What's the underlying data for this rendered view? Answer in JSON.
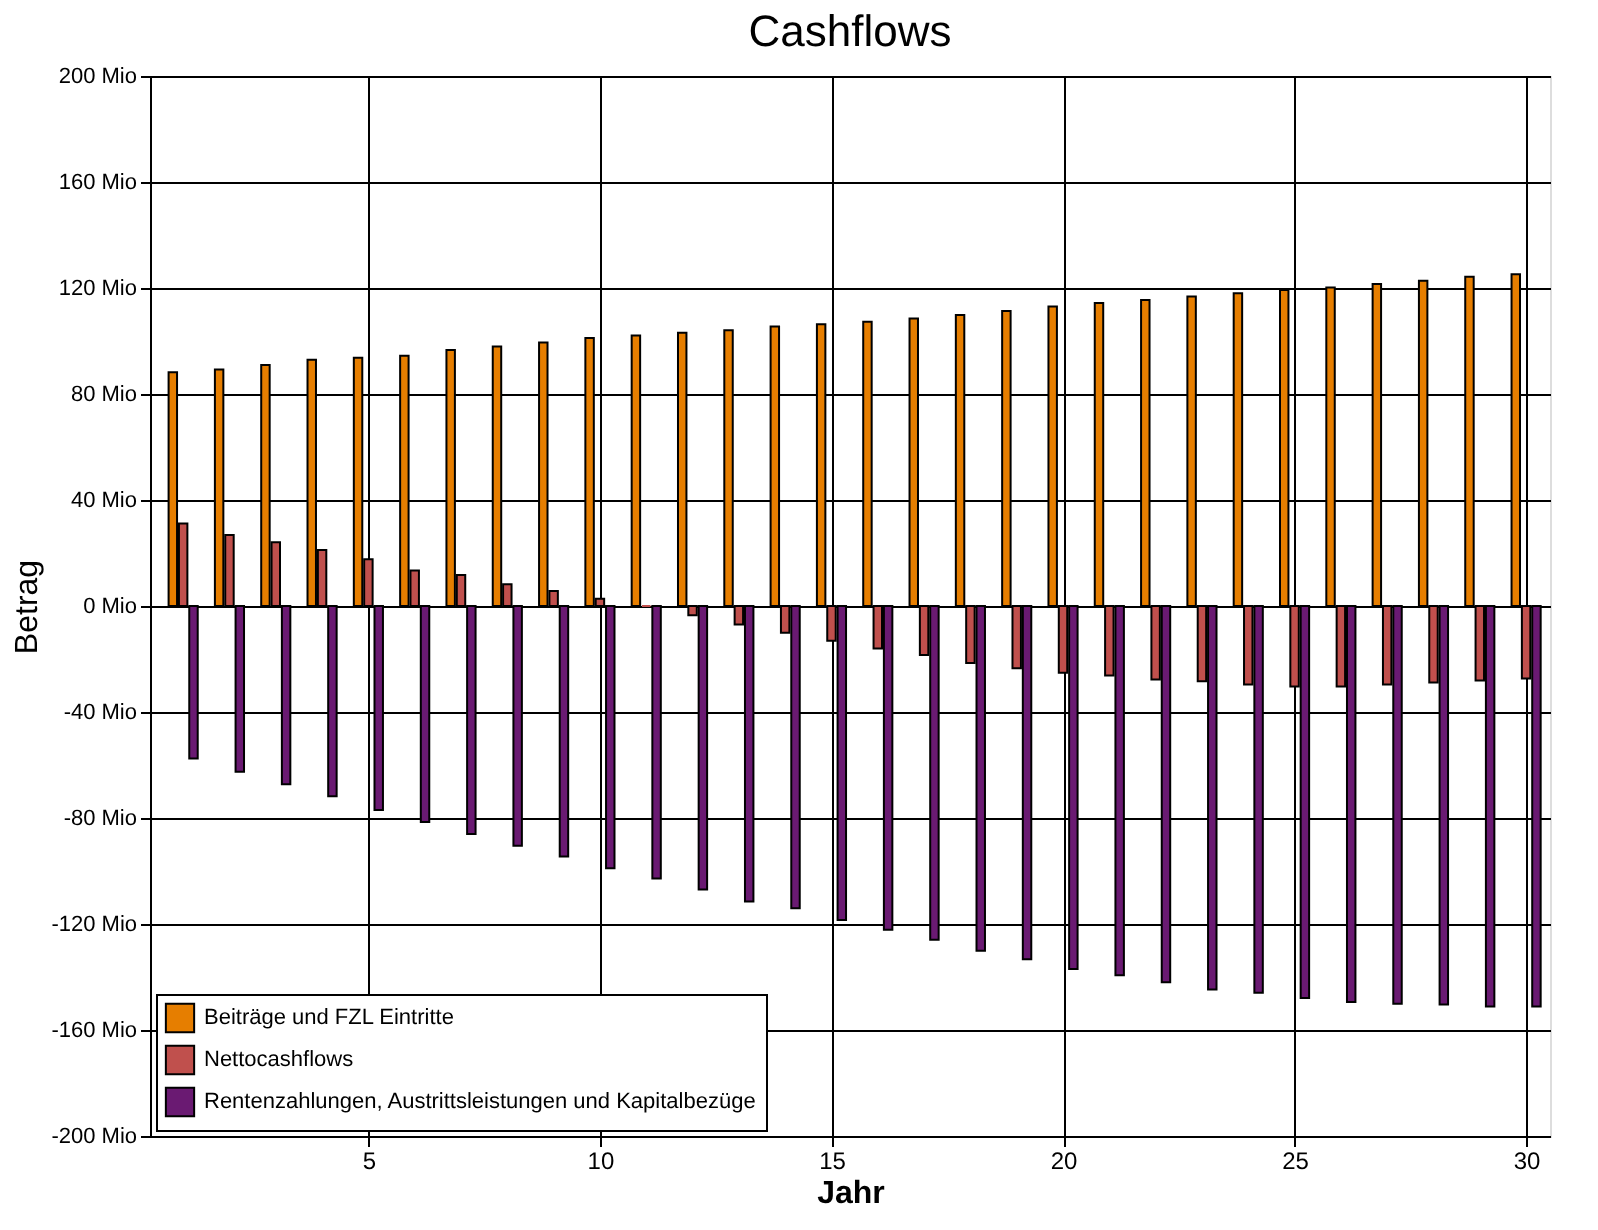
{
  "chart_data": {
    "type": "bar",
    "title": "Cashflows",
    "xlabel": "Jahr",
    "ylabel": "Betrag",
    "x": [
      1,
      2,
      3,
      4,
      5,
      6,
      7,
      8,
      9,
      10,
      11,
      12,
      13,
      14,
      15,
      16,
      17,
      18,
      19,
      20,
      21,
      22,
      23,
      24,
      25,
      26,
      27,
      28,
      29,
      30
    ],
    "xlim": [
      0.5,
      30.3
    ],
    "xticks": [
      5,
      10,
      15,
      20,
      25,
      30
    ],
    "ylim": [
      -200,
      200
    ],
    "yticks": [
      {
        "value": -200,
        "label": "-200 Mio"
      },
      {
        "value": -160,
        "label": "-160 Mio"
      },
      {
        "value": -120,
        "label": "-120 Mio"
      },
      {
        "value": -80,
        "label": "-80 Mio"
      },
      {
        "value": -40,
        "label": "-40 Mio"
      },
      {
        "value": 0,
        "label": "0 Mio"
      },
      {
        "value": 40,
        "label": "40 Mio"
      },
      {
        "value": 80,
        "label": "80 Mio"
      },
      {
        "value": 120,
        "label": "120 Mio"
      },
      {
        "value": 160,
        "label": "160 Mio"
      },
      {
        "value": 200,
        "label": "200 Mio"
      }
    ],
    "grid": true,
    "legend": "bottom left",
    "series": [
      {
        "name": "Beiträge und FZL Eintritte",
        "color": "#e67e00",
        "values": [
          88.2,
          89.2,
          90.9,
          92.9,
          93.7,
          94.4,
          96.6,
          97.9,
          99.4,
          101.1,
          102.1,
          103.1,
          104.1,
          105.5,
          106.3,
          107.3,
          108.5,
          109.8,
          111.3,
          113.0,
          114.3,
          115.5,
          116.8,
          118.0,
          119.2,
          120.2,
          121.5,
          122.7,
          124.2,
          125.2
        ]
      },
      {
        "name": "Nettocashflows",
        "color": "#c0504d",
        "values": [
          31.1,
          26.8,
          24.1,
          21.1,
          17.6,
          13.4,
          11.7,
          8.2,
          5.7,
          2.7,
          0,
          -3.5,
          -7.0,
          -10.1,
          -13.1,
          -16.0,
          -18.5,
          -21.5,
          -23.5,
          -25.2,
          -26.2,
          -27.7,
          -28.4,
          -29.6,
          -30.4,
          -30.4,
          -29.6,
          -28.9,
          -28.1,
          -27.4
        ]
      },
      {
        "name": "Rentenzahlungen, Austrittsleistungen und Kapitalbezüge",
        "color": "#6a1a72",
        "values": [
          -57.5,
          -62.5,
          -67.3,
          -71.8,
          -77,
          -81.5,
          -86,
          -90.5,
          -94.5,
          -99,
          -102.8,
          -107,
          -111.5,
          -114.1,
          -118.5,
          -122.2,
          -125.9,
          -130.1,
          -133.3,
          -137,
          -139.3,
          -142,
          -144.7,
          -145.9,
          -147.9,
          -149.4,
          -150.1,
          -150.4,
          -151.1,
          -151.1
        ]
      }
    ]
  }
}
